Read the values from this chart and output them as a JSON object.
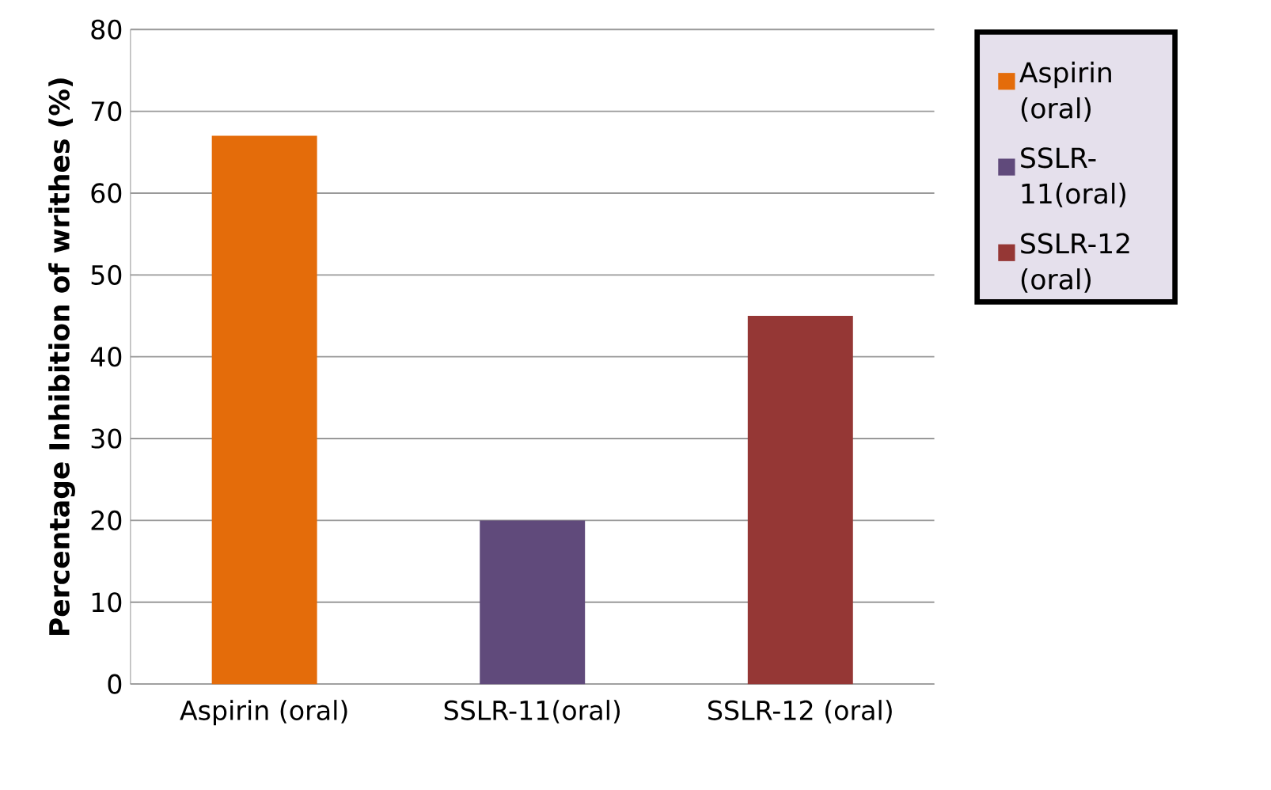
{
  "chart_data": {
    "type": "bar",
    "ylabel": "Percentage Inhibition of writhes (%)",
    "categories": [
      "Aspirin (oral)",
      "SSLR-11(oral)",
      "SSLR-12 (oral)"
    ],
    "series": [
      {
        "name": "Aspirin (oral)",
        "color": "#e46c0a",
        "values": [
          67,
          null,
          null
        ]
      },
      {
        "name": "SSLR-11(oral)",
        "color": "#604a7b",
        "values": [
          null,
          20,
          null
        ]
      },
      {
        "name": "SSLR-12 (oral)",
        "color": "#953735",
        "values": [
          null,
          null,
          45
        ]
      }
    ],
    "ylim": [
      0,
      80
    ],
    "yticks": [
      0,
      10,
      20,
      30,
      40,
      50,
      60,
      70,
      80
    ],
    "grid": "y",
    "legend": "right"
  }
}
